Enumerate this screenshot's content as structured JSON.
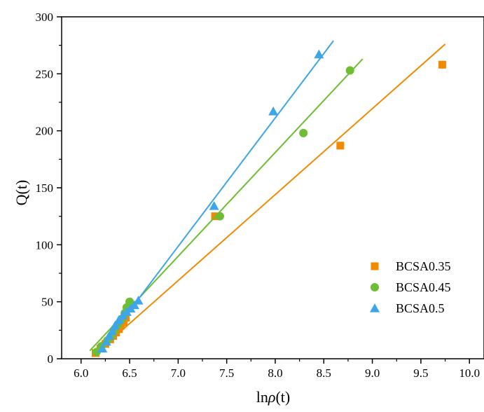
{
  "chart_data": {
    "type": "scatter",
    "title": "",
    "xlabel_prefix": "ln",
    "xlabel_symbol": "ρ",
    "xlabel_suffix": "(t)",
    "ylabel": "Q(t)",
    "xlim": [
      5.8,
      10.15
    ],
    "ylim": [
      0,
      300
    ],
    "xticks": [
      6.0,
      6.5,
      7.0,
      7.5,
      8.0,
      8.5,
      9.0,
      9.5,
      10.0
    ],
    "xtick_labels": [
      "6.0",
      "6.5",
      "7.0",
      "7.5",
      "8.0",
      "8.5",
      "9.0",
      "9.5",
      "10.0"
    ],
    "yticks": [
      0,
      50,
      100,
      150,
      200,
      250,
      300
    ],
    "ytick_labels": [
      "0",
      "50",
      "100",
      "150",
      "200",
      "250",
      "300"
    ],
    "grid": false,
    "legend_position": "lower-right",
    "series": [
      {
        "name": "BCSA0.35",
        "marker": "square",
        "color": "#F28A00",
        "points": [
          [
            6.15,
            5
          ],
          [
            6.2,
            9
          ],
          [
            6.25,
            13
          ],
          [
            6.3,
            17
          ],
          [
            6.33,
            20
          ],
          [
            6.36,
            23
          ],
          [
            6.39,
            26
          ],
          [
            6.41,
            29
          ],
          [
            6.44,
            32
          ],
          [
            6.46,
            36
          ],
          [
            7.38,
            125
          ],
          [
            8.67,
            187
          ],
          [
            9.72,
            258
          ]
        ],
        "fit": [
          [
            6.13,
            3
          ],
          [
            9.75,
            276
          ]
        ]
      },
      {
        "name": "BCSA0.45",
        "marker": "circle",
        "color": "#6DBE32",
        "points": [
          [
            6.16,
            6
          ],
          [
            6.21,
            11
          ],
          [
            6.27,
            16
          ],
          [
            6.31,
            20
          ],
          [
            6.34,
            25
          ],
          [
            6.38,
            30
          ],
          [
            6.42,
            35
          ],
          [
            6.45,
            40
          ],
          [
            6.47,
            45
          ],
          [
            6.5,
            50
          ],
          [
            7.43,
            125
          ],
          [
            8.29,
            198
          ],
          [
            8.77,
            253
          ]
        ],
        "fit": [
          [
            6.09,
            7
          ],
          [
            8.9,
            263
          ]
        ]
      },
      {
        "name": "BCSA0.5",
        "marker": "triangle",
        "color": "#3DA6E8",
        "points": [
          [
            6.22,
            9
          ],
          [
            6.26,
            15
          ],
          [
            6.29,
            20
          ],
          [
            6.32,
            24
          ],
          [
            6.35,
            29
          ],
          [
            6.39,
            34
          ],
          [
            6.43,
            38
          ],
          [
            6.47,
            41
          ],
          [
            6.51,
            44
          ],
          [
            6.55,
            47
          ],
          [
            6.59,
            51
          ],
          [
            7.37,
            134
          ],
          [
            7.98,
            217
          ],
          [
            8.45,
            267
          ]
        ],
        "fit": [
          [
            6.17,
            5
          ],
          [
            8.6,
            279
          ]
        ]
      }
    ]
  }
}
